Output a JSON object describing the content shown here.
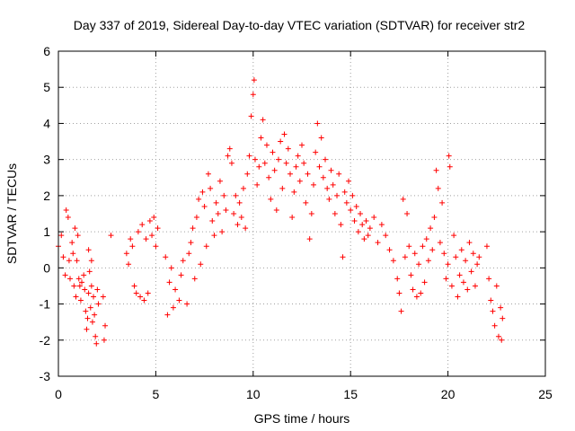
{
  "chart_data": {
    "type": "scatter",
    "title": "Day 337 of 2019, Sidereal Day-to-day VTEC variation (SDTVAR) for receiver str2",
    "xlabel": "GPS time / hours",
    "ylabel": "SDTVAR / TECUs",
    "xlim": [
      0,
      25
    ],
    "ylim": [
      -3,
      6
    ],
    "xticks": [
      "0",
      "5",
      "10",
      "15",
      "20",
      "25"
    ],
    "yticks": [
      "-3",
      "-2",
      "-1",
      "0",
      "1",
      "2",
      "3",
      "4",
      "5",
      "6"
    ],
    "grid": true,
    "marker": "+",
    "series": [
      {
        "name": "SDTVAR",
        "color": "#ff0000",
        "points": [
          [
            0.0,
            0.6
          ],
          [
            0.15,
            0.9
          ],
          [
            0.25,
            0.3
          ],
          [
            0.35,
            -0.2
          ],
          [
            0.4,
            1.6
          ],
          [
            0.5,
            1.4
          ],
          [
            0.55,
            0.2
          ],
          [
            0.6,
            -0.3
          ],
          [
            0.7,
            0.7
          ],
          [
            0.75,
            0.4
          ],
          [
            0.8,
            -0.5
          ],
          [
            0.85,
            1.1
          ],
          [
            0.9,
            -0.8
          ],
          [
            0.95,
            0.2
          ],
          [
            1.0,
            0.9
          ],
          [
            1.05,
            -0.3
          ],
          [
            1.1,
            -0.5
          ],
          [
            1.15,
            -0.9
          ],
          [
            1.2,
            -0.4
          ],
          [
            1.3,
            -0.2
          ],
          [
            1.35,
            -0.6
          ],
          [
            1.4,
            -1.2
          ],
          [
            1.45,
            -1.7
          ],
          [
            1.5,
            -1.4
          ],
          [
            1.55,
            0.5
          ],
          [
            1.55,
            -0.7
          ],
          [
            1.6,
            -0.1
          ],
          [
            1.65,
            -1.1
          ],
          [
            1.7,
            0.2
          ],
          [
            1.7,
            -0.5
          ],
          [
            1.75,
            -1.5
          ],
          [
            1.8,
            -0.8
          ],
          [
            1.85,
            -1.3
          ],
          [
            1.9,
            -1.9
          ],
          [
            1.95,
            -2.1
          ],
          [
            2.0,
            -0.6
          ],
          [
            2.05,
            -1.0
          ],
          [
            2.3,
            -0.8
          ],
          [
            2.35,
            -2.0
          ],
          [
            2.4,
            -1.6
          ],
          [
            2.7,
            0.9
          ],
          [
            3.5,
            0.4
          ],
          [
            3.6,
            0.1
          ],
          [
            3.7,
            0.8
          ],
          [
            3.8,
            0.6
          ],
          [
            3.9,
            -0.5
          ],
          [
            4.0,
            -0.7
          ],
          [
            4.1,
            1.0
          ],
          [
            4.2,
            -0.8
          ],
          [
            4.3,
            1.2
          ],
          [
            4.4,
            -0.9
          ],
          [
            4.5,
            0.8
          ],
          [
            4.6,
            -0.7
          ],
          [
            4.7,
            1.3
          ],
          [
            4.8,
            0.9
          ],
          [
            4.9,
            1.4
          ],
          [
            5.0,
            0.6
          ],
          [
            5.1,
            1.1
          ],
          [
            5.5,
            0.3
          ],
          [
            5.6,
            -1.3
          ],
          [
            5.7,
            -0.4
          ],
          [
            5.8,
            0.0
          ],
          [
            5.9,
            -1.1
          ],
          [
            6.0,
            -0.6
          ],
          [
            6.2,
            -0.9
          ],
          [
            6.3,
            -0.2
          ],
          [
            6.4,
            0.2
          ],
          [
            6.6,
            -1.0
          ],
          [
            6.7,
            0.4
          ],
          [
            6.8,
            0.7
          ],
          [
            6.9,
            1.1
          ],
          [
            7.0,
            -0.3
          ],
          [
            7.1,
            1.4
          ],
          [
            7.2,
            1.9
          ],
          [
            7.3,
            0.1
          ],
          [
            7.4,
            2.1
          ],
          [
            7.5,
            1.7
          ],
          [
            7.6,
            0.6
          ],
          [
            7.7,
            2.6
          ],
          [
            7.8,
            2.2
          ],
          [
            7.9,
            1.3
          ],
          [
            8.0,
            0.9
          ],
          [
            8.1,
            1.8
          ],
          [
            8.2,
            1.5
          ],
          [
            8.3,
            2.4
          ],
          [
            8.4,
            1.0
          ],
          [
            8.5,
            2.0
          ],
          [
            8.6,
            1.6
          ],
          [
            8.7,
            3.1
          ],
          [
            8.8,
            3.3
          ],
          [
            8.9,
            2.9
          ],
          [
            9.0,
            1.5
          ],
          [
            9.1,
            2.0
          ],
          [
            9.2,
            1.2
          ],
          [
            9.3,
            1.8
          ],
          [
            9.4,
            1.4
          ],
          [
            9.5,
            2.2
          ],
          [
            9.6,
            1.1
          ],
          [
            9.7,
            2.6
          ],
          [
            9.8,
            3.1
          ],
          [
            9.9,
            4.2
          ],
          [
            10.0,
            4.8
          ],
          [
            10.05,
            5.2
          ],
          [
            10.1,
            3.0
          ],
          [
            10.2,
            2.3
          ],
          [
            10.3,
            2.8
          ],
          [
            10.4,
            3.6
          ],
          [
            10.5,
            4.1
          ],
          [
            10.6,
            2.9
          ],
          [
            10.7,
            3.4
          ],
          [
            10.8,
            2.5
          ],
          [
            10.9,
            1.9
          ],
          [
            11.0,
            3.2
          ],
          [
            11.1,
            2.7
          ],
          [
            11.2,
            1.6
          ],
          [
            11.3,
            3.0
          ],
          [
            11.4,
            3.5
          ],
          [
            11.5,
            2.2
          ],
          [
            11.6,
            3.7
          ],
          [
            11.7,
            2.9
          ],
          [
            11.8,
            3.3
          ],
          [
            11.9,
            2.6
          ],
          [
            12.0,
            1.4
          ],
          [
            12.1,
            2.1
          ],
          [
            12.2,
            2.8
          ],
          [
            12.3,
            3.1
          ],
          [
            12.4,
            2.4
          ],
          [
            12.5,
            3.4
          ],
          [
            12.6,
            2.9
          ],
          [
            12.7,
            1.8
          ],
          [
            12.8,
            2.6
          ],
          [
            12.9,
            0.8
          ],
          [
            13.0,
            1.5
          ],
          [
            13.1,
            2.3
          ],
          [
            13.2,
            3.2
          ],
          [
            13.3,
            4.0
          ],
          [
            13.4,
            2.8
          ],
          [
            13.5,
            3.6
          ],
          [
            13.6,
            2.5
          ],
          [
            13.7,
            3.0
          ],
          [
            13.8,
            2.2
          ],
          [
            13.9,
            1.9
          ],
          [
            14.0,
            2.7
          ],
          [
            14.1,
            2.3
          ],
          [
            14.2,
            1.5
          ],
          [
            14.3,
            2.0
          ],
          [
            14.4,
            2.6
          ],
          [
            14.5,
            1.2
          ],
          [
            14.6,
            0.3
          ],
          [
            14.7,
            2.1
          ],
          [
            14.8,
            1.8
          ],
          [
            14.9,
            2.4
          ],
          [
            15.0,
            1.6
          ],
          [
            15.1,
            2.0
          ],
          [
            15.2,
            1.3
          ],
          [
            15.3,
            1.7
          ],
          [
            15.4,
            1.0
          ],
          [
            15.5,
            1.5
          ],
          [
            15.6,
            1.2
          ],
          [
            15.7,
            0.8
          ],
          [
            15.8,
            1.3
          ],
          [
            15.9,
            0.9
          ],
          [
            16.0,
            1.1
          ],
          [
            16.2,
            1.4
          ],
          [
            16.4,
            0.7
          ],
          [
            16.6,
            1.2
          ],
          [
            16.8,
            0.9
          ],
          [
            17.0,
            0.5
          ],
          [
            17.2,
            0.2
          ],
          [
            17.4,
            -0.3
          ],
          [
            17.5,
            -0.7
          ],
          [
            17.6,
            -1.2
          ],
          [
            17.7,
            1.9
          ],
          [
            17.8,
            0.3
          ],
          [
            17.9,
            1.5
          ],
          [
            18.0,
            0.6
          ],
          [
            18.1,
            -0.2
          ],
          [
            18.2,
            -0.6
          ],
          [
            18.3,
            0.4
          ],
          [
            18.4,
            -0.8
          ],
          [
            18.5,
            0.1
          ],
          [
            18.6,
            -0.7
          ],
          [
            18.7,
            0.6
          ],
          [
            18.8,
            -0.4
          ],
          [
            18.9,
            0.8
          ],
          [
            19.0,
            0.2
          ],
          [
            19.1,
            1.1
          ],
          [
            19.2,
            0.5
          ],
          [
            19.3,
            1.4
          ],
          [
            19.4,
            2.7
          ],
          [
            19.5,
            2.2
          ],
          [
            19.6,
            0.7
          ],
          [
            19.7,
            1.8
          ],
          [
            19.8,
            0.4
          ],
          [
            19.9,
            -0.3
          ],
          [
            20.0,
            0.1
          ],
          [
            20.05,
            3.1
          ],
          [
            20.1,
            2.8
          ],
          [
            20.2,
            -0.5
          ],
          [
            20.3,
            0.9
          ],
          [
            20.4,
            0.3
          ],
          [
            20.5,
            -0.8
          ],
          [
            20.6,
            -0.2
          ],
          [
            20.7,
            0.5
          ],
          [
            20.8,
            -0.4
          ],
          [
            20.9,
            0.2
          ],
          [
            21.0,
            -0.6
          ],
          [
            21.1,
            0.7
          ],
          [
            21.2,
            -0.1
          ],
          [
            21.3,
            0.4
          ],
          [
            21.4,
            -0.5
          ],
          [
            21.5,
            0.1
          ],
          [
            21.6,
            0.3
          ],
          [
            22.0,
            0.6
          ],
          [
            22.1,
            -0.3
          ],
          [
            22.2,
            -0.9
          ],
          [
            22.3,
            -1.2
          ],
          [
            22.4,
            -1.6
          ],
          [
            22.5,
            -0.5
          ],
          [
            22.6,
            -1.9
          ],
          [
            22.7,
            -1.1
          ],
          [
            22.75,
            -2.0
          ],
          [
            22.8,
            -1.4
          ]
        ]
      }
    ]
  }
}
